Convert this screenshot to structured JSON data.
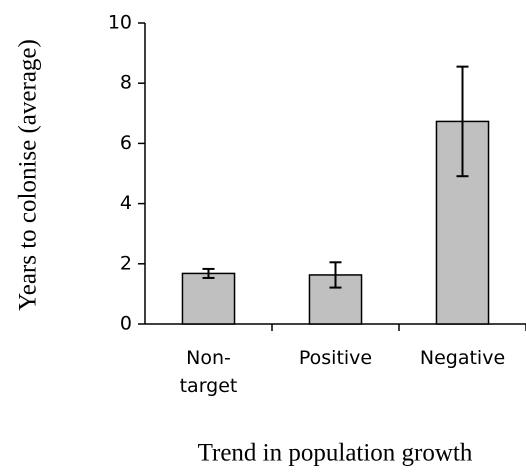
{
  "chart_data": {
    "type": "bar",
    "x_label": "Trend in population growth",
    "y_label": "Years to colonise (average)",
    "categories": [
      "Non-target",
      "Positive",
      "Negative"
    ],
    "values": [
      1.68,
      1.63,
      6.73
    ],
    "errors": [
      0.15,
      0.42,
      1.82
    ],
    "color": "#c0c0c0",
    "ylim": [
      0,
      10
    ],
    "yticks": [
      0,
      2,
      4,
      6,
      8,
      10
    ],
    "grid": false
  }
}
